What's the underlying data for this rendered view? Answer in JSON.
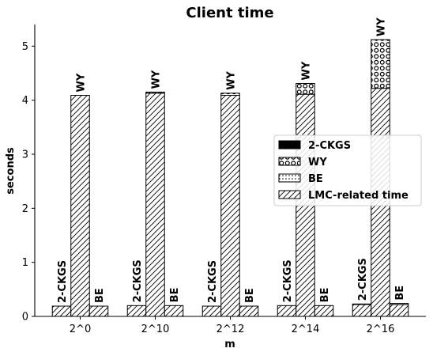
{
  "chart_data": {
    "type": "bar",
    "title": "Client time",
    "xlabel": "m",
    "ylabel": "seconds",
    "ylim": [
      0,
      5.4
    ],
    "yticks": [
      0,
      1,
      2,
      3,
      4,
      5
    ],
    "categories": [
      "2^0",
      "2^10",
      "2^12",
      "2^14",
      "2^16"
    ],
    "groups": [
      {
        "name": "2-CKGS",
        "label": "2-CKGS"
      },
      {
        "name": "WY",
        "label": "WY"
      },
      {
        "name": "BE",
        "label": "BE"
      }
    ],
    "stacks": [
      {
        "name": "LMC-related time",
        "pattern": "hatch-diag"
      },
      {
        "name": "2-CKGS",
        "pattern": "solid-black"
      },
      {
        "name": "WY",
        "pattern": "circles"
      },
      {
        "name": "BE",
        "pattern": "dots"
      }
    ],
    "series": [
      {
        "group": "2-CKGS",
        "lmc": [
          0.19,
          0.2,
          0.19,
          0.2,
          0.22
        ],
        "own": [
          0.0,
          0.0,
          0.0,
          0.0,
          0.01
        ]
      },
      {
        "group": "WY",
        "lmc": [
          4.09,
          4.13,
          4.09,
          4.11,
          4.22
        ],
        "own": [
          0.0,
          0.02,
          0.04,
          0.2,
          0.9
        ]
      },
      {
        "group": "BE",
        "lmc": [
          0.19,
          0.2,
          0.19,
          0.2,
          0.22
        ],
        "own": [
          0.0,
          0.0,
          0.0,
          0.0,
          0.02
        ]
      }
    ],
    "legend": {
      "position": "center-right",
      "entries": [
        "2-CKGS",
        "WY",
        "BE",
        "LMC-related time"
      ]
    },
    "grid": false
  }
}
